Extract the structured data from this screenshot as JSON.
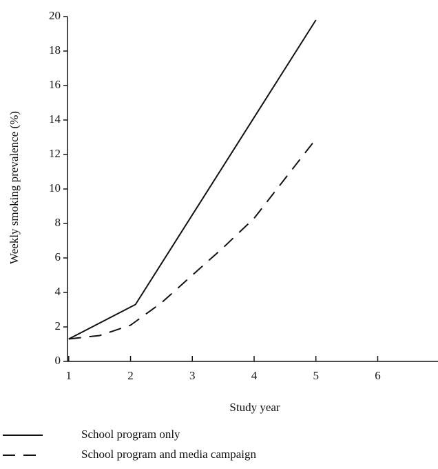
{
  "chart_data": {
    "type": "line",
    "xlabel": "Study year",
    "ylabel": "Weekly smoking prevalence (%)",
    "series": [
      {
        "name": "School program only",
        "color": "#111111",
        "dash": "solid",
        "x": [
          1,
          2.08,
          5
        ],
        "values": [
          1.3,
          3.3,
          19.8
        ]
      },
      {
        "name": "School program and media campaign",
        "color": "#111111",
        "dash": "dashed",
        "x": [
          1,
          1.5,
          2,
          2.5,
          3,
          3.5,
          4,
          4.5,
          5
        ],
        "values": [
          1.3,
          1.5,
          2.1,
          3.4,
          5.0,
          6.6,
          8.3,
          10.6,
          12.9
        ]
      }
    ],
    "xlim": [
      0.98,
      6.92
    ],
    "xticks": [
      1,
      2,
      3,
      4,
      5,
      6
    ],
    "ylim": [
      0,
      20
    ],
    "yticks": [
      0,
      2,
      4,
      6,
      8,
      10,
      12,
      14,
      16,
      18,
      20
    ],
    "grid": false,
    "legend": "bottom"
  }
}
